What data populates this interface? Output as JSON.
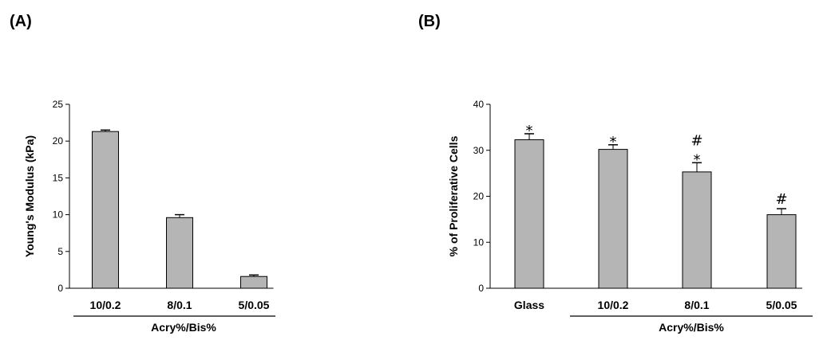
{
  "panels": {
    "a": "(A)",
    "b": "(B)"
  },
  "chart_data": [
    {
      "type": "bar",
      "title": "",
      "xlabel": "Acry%/Bis%",
      "ylabel": "Young's Modulus (kPa)",
      "ylim": [
        0,
        25
      ],
      "yticks": [
        0,
        5,
        10,
        15,
        20,
        25
      ],
      "categories": [
        "10/0.2",
        "8/0.1",
        "5/0.05"
      ],
      "values": [
        21.3,
        9.6,
        1.6
      ],
      "errors": [
        0.2,
        0.4,
        0.2
      ],
      "grouped_categories": [
        "10/0.2",
        "8/0.1",
        "5/0.05"
      ],
      "bar_color": "#b5b5b5"
    },
    {
      "type": "bar",
      "title": "",
      "xlabel": "Acry%/Bis%",
      "ylabel": "% of Proliferative Cells",
      "ylim": [
        0,
        40
      ],
      "yticks": [
        0,
        10,
        20,
        30,
        40
      ],
      "categories": [
        "Glass",
        "10/0.2",
        "8/0.1",
        "5/0.05"
      ],
      "values": [
        32.3,
        30.2,
        25.3,
        16.0
      ],
      "errors": [
        1.3,
        1.0,
        2.0,
        1.3
      ],
      "annotations": [
        "*",
        "*",
        "#\n*",
        "#"
      ],
      "grouped_categories": [
        "10/0.2",
        "8/0.1",
        "5/0.05"
      ],
      "bar_color": "#b5b5b5"
    }
  ]
}
